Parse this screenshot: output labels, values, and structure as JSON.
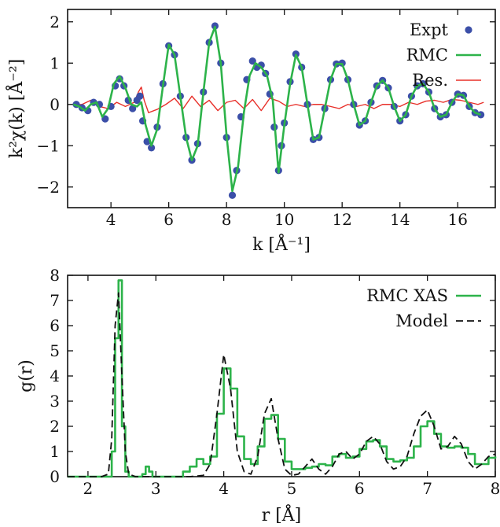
{
  "chart_data": [
    {
      "type": "line",
      "panel": "top",
      "xlabel": "k [Å⁻¹]",
      "ylabel": "k²χ(k) [Å⁻²]",
      "xlim": [
        2.5,
        17.3
      ],
      "ylim": [
        -2.5,
        2.3
      ],
      "xticks": [
        4,
        6,
        8,
        10,
        12,
        14,
        16
      ],
      "yticks": [
        -2,
        -1,
        0,
        1,
        2
      ],
      "grid": false,
      "legend_position": "top-right",
      "legend": [
        "Expt",
        "RMC",
        "Res."
      ],
      "colors": {
        "expt": "#3b4fa8",
        "rmc": "#2db34a",
        "res": "#e8302a"
      },
      "series": [
        {
          "name": "Expt",
          "style": "markers",
          "x": [
            2.8,
            3.0,
            3.2,
            3.4,
            3.6,
            3.8,
            4.0,
            4.15,
            4.3,
            4.45,
            4.6,
            4.75,
            4.9,
            5.0,
            5.1,
            5.25,
            5.4,
            5.6,
            5.8,
            6.0,
            6.2,
            6.4,
            6.6,
            6.8,
            7.0,
            7.2,
            7.4,
            7.6,
            7.8,
            8.0,
            8.2,
            8.35,
            8.5,
            8.7,
            8.9,
            9.05,
            9.2,
            9.35,
            9.5,
            9.65,
            9.8,
            9.9,
            10.0,
            10.2,
            10.4,
            10.6,
            10.8,
            11.0,
            11.2,
            11.4,
            11.6,
            11.8,
            12.0,
            12.2,
            12.4,
            12.6,
            12.8,
            13.0,
            13.2,
            13.4,
            13.6,
            13.8,
            14.0,
            14.2,
            14.4,
            14.6,
            14.8,
            15.0,
            15.2,
            15.4,
            15.6,
            15.8,
            16.0,
            16.2,
            16.4,
            16.6,
            16.8
          ],
          "y": [
            0.0,
            -0.08,
            -0.15,
            0.05,
            0.0,
            -0.35,
            -0.05,
            0.45,
            0.62,
            0.45,
            0.1,
            -0.1,
            0.1,
            0.2,
            -0.4,
            -0.9,
            -1.05,
            -0.55,
            0.5,
            1.42,
            1.2,
            0.2,
            -0.8,
            -1.35,
            -0.95,
            0.3,
            1.5,
            1.9,
            1.0,
            -0.8,
            -2.2,
            -1.6,
            -0.3,
            0.6,
            1.05,
            0.9,
            0.95,
            0.75,
            0.25,
            -0.55,
            -1.6,
            -1.0,
            -0.45,
            0.55,
            1.22,
            0.9,
            0.0,
            -0.85,
            -0.8,
            -0.1,
            0.6,
            0.98,
            1.0,
            0.6,
            0.0,
            -0.5,
            -0.4,
            0.05,
            0.45,
            0.58,
            0.4,
            -0.05,
            -0.4,
            -0.25,
            0.2,
            0.45,
            0.5,
            0.3,
            -0.1,
            -0.3,
            -0.25,
            0.05,
            0.25,
            0.22,
            -0.05,
            -0.2,
            -0.25
          ]
        },
        {
          "name": "RMC",
          "style": "line",
          "x": [
            2.7,
            2.9,
            3.1,
            3.3,
            3.5,
            3.7,
            3.9,
            4.1,
            4.3,
            4.5,
            4.7,
            4.9,
            5.05,
            5.2,
            5.4,
            5.6,
            5.8,
            6.0,
            6.2,
            6.4,
            6.6,
            6.8,
            7.0,
            7.2,
            7.4,
            7.6,
            7.8,
            8.0,
            8.2,
            8.4,
            8.6,
            8.8,
            9.0,
            9.2,
            9.4,
            9.6,
            9.8,
            10.0,
            10.2,
            10.4,
            10.6,
            10.8,
            11.0,
            11.2,
            11.4,
            11.6,
            11.8,
            12.0,
            12.2,
            12.4,
            12.6,
            12.8,
            13.0,
            13.2,
            13.4,
            13.6,
            13.8,
            14.0,
            14.2,
            14.4,
            14.6,
            14.8,
            15.0,
            15.2,
            15.4,
            15.6,
            15.8,
            16.0,
            16.2,
            16.4,
            16.6,
            16.8
          ],
          "y": [
            0.0,
            -0.05,
            -0.15,
            0.0,
            0.05,
            -0.3,
            -0.1,
            0.5,
            0.68,
            0.4,
            0.0,
            -0.05,
            0.05,
            -0.5,
            -1.0,
            -0.6,
            0.45,
            1.45,
            1.2,
            0.2,
            -0.8,
            -1.35,
            -1.0,
            0.3,
            1.5,
            1.88,
            1.0,
            -0.75,
            -2.1,
            -1.5,
            -0.2,
            0.7,
            1.0,
            0.9,
            0.7,
            0.1,
            -1.65,
            -0.5,
            0.5,
            1.2,
            0.9,
            0.0,
            -0.85,
            -0.8,
            -0.1,
            0.6,
            0.98,
            0.98,
            0.6,
            0.0,
            -0.5,
            -0.4,
            0.05,
            0.45,
            0.58,
            0.4,
            -0.05,
            -0.4,
            -0.25,
            0.2,
            0.45,
            0.5,
            0.3,
            -0.1,
            -0.3,
            -0.25,
            0.05,
            0.25,
            0.22,
            -0.05,
            -0.2,
            -0.25
          ]
        },
        {
          "name": "Res.",
          "style": "line",
          "x": [
            2.7,
            3.0,
            3.3,
            3.6,
            3.9,
            4.2,
            4.5,
            4.8,
            4.95,
            5.05,
            5.15,
            5.3,
            5.6,
            5.9,
            6.2,
            6.5,
            6.8,
            7.1,
            7.4,
            7.7,
            8.0,
            8.3,
            8.6,
            8.9,
            9.2,
            9.5,
            9.8,
            10.1,
            10.4,
            10.7,
            11.0,
            11.3,
            11.6,
            11.9,
            12.2,
            12.5,
            12.8,
            13.1,
            13.4,
            13.7,
            14.0,
            14.3,
            14.6,
            14.9,
            15.2,
            15.5,
            15.8,
            16.1,
            16.4,
            16.7,
            16.9
          ],
          "y": [
            -0.02,
            0.0,
            0.1,
            -0.05,
            -0.1,
            0.05,
            -0.05,
            0.05,
            0.3,
            0.42,
            0.1,
            -0.2,
            -0.12,
            0.0,
            0.15,
            -0.1,
            0.2,
            -0.05,
            0.1,
            -0.15,
            0.05,
            0.1,
            -0.1,
            0.12,
            -0.15,
            0.15,
            0.08,
            -0.05,
            0.0,
            -0.05,
            0.0,
            0.0,
            -0.05,
            -0.1,
            0.0,
            -0.05,
            0.0,
            -0.1,
            0.0,
            0.0,
            -0.05,
            0.05,
            0.0,
            0.08,
            0.1,
            0.05,
            0.12,
            0.1,
            0.05,
            0.0,
            0.05
          ]
        }
      ]
    },
    {
      "type": "line",
      "panel": "bottom",
      "xlabel": "r [Å]",
      "ylabel": "g(r)",
      "xlim": [
        1.7,
        8.0
      ],
      "ylim": [
        0,
        8
      ],
      "xticks": [
        2,
        3,
        4,
        5,
        6,
        7,
        8
      ],
      "yticks": [
        0,
        1,
        2,
        3,
        4,
        5,
        6,
        7,
        8
      ],
      "grid": false,
      "legend_position": "top-right",
      "legend": [
        "RMC XAS",
        "Model"
      ],
      "colors": {
        "rmc_xas": "#2db34a",
        "model": "#111111"
      },
      "series": [
        {
          "name": "RMC XAS",
          "style": "step",
          "x": [
            1.7,
            2.2,
            2.3,
            2.35,
            2.4,
            2.45,
            2.5,
            2.55,
            2.6,
            2.65,
            2.7,
            2.8,
            2.85,
            2.9,
            2.95,
            3.0,
            3.2,
            3.4,
            3.5,
            3.6,
            3.7,
            3.8,
            3.9,
            4.0,
            4.1,
            4.2,
            4.3,
            4.4,
            4.5,
            4.6,
            4.7,
            4.8,
            4.9,
            5.0,
            5.1,
            5.2,
            5.3,
            5.4,
            5.5,
            5.6,
            5.7,
            5.8,
            5.9,
            6.0,
            6.1,
            6.2,
            6.3,
            6.4,
            6.5,
            6.6,
            6.7,
            6.8,
            6.9,
            7.0,
            7.1,
            7.2,
            7.3,
            7.4,
            7.5,
            7.6,
            7.7,
            7.8,
            7.9,
            8.0
          ],
          "y": [
            0.0,
            0.0,
            0.0,
            1.0,
            5.5,
            7.8,
            2.0,
            0.2,
            0.0,
            0.0,
            0.0,
            0.1,
            0.4,
            0.2,
            0.0,
            0.0,
            0.0,
            0.2,
            0.4,
            0.7,
            0.5,
            0.8,
            2.5,
            4.3,
            3.5,
            1.6,
            0.7,
            0.5,
            1.2,
            2.3,
            2.45,
            1.5,
            0.6,
            0.3,
            0.3,
            0.35,
            0.4,
            0.5,
            0.45,
            0.8,
            0.9,
            0.75,
            0.8,
            1.1,
            1.4,
            1.45,
            1.2,
            0.7,
            0.6,
            0.65,
            0.75,
            1.2,
            2.0,
            2.2,
            1.7,
            1.2,
            1.15,
            1.2,
            1.15,
            0.9,
            0.5,
            0.5,
            0.75,
            0.8
          ]
        },
        {
          "name": "Model",
          "style": "dashed",
          "x": [
            1.7,
            2.2,
            2.3,
            2.35,
            2.4,
            2.45,
            2.5,
            2.55,
            2.6,
            2.7,
            2.8,
            3.0,
            3.5,
            3.7,
            3.8,
            3.9,
            4.0,
            4.1,
            4.2,
            4.3,
            4.4,
            4.5,
            4.6,
            4.7,
            4.8,
            4.9,
            5.0,
            5.1,
            5.2,
            5.3,
            5.4,
            5.5,
            5.6,
            5.7,
            5.8,
            5.9,
            6.0,
            6.1,
            6.2,
            6.3,
            6.4,
            6.5,
            6.6,
            6.7,
            6.8,
            6.9,
            7.0,
            7.1,
            7.2,
            7.3,
            7.4,
            7.5,
            7.6,
            7.7,
            7.8,
            7.9,
            8.0
          ],
          "y": [
            0.0,
            0.0,
            0.1,
            1.5,
            6.0,
            7.3,
            4.0,
            1.0,
            0.1,
            0.0,
            0.0,
            0.0,
            0.0,
            0.05,
            0.5,
            2.5,
            4.85,
            3.5,
            1.0,
            0.2,
            0.1,
            0.8,
            2.5,
            3.1,
            1.5,
            0.3,
            0.05,
            0.1,
            0.4,
            0.7,
            0.3,
            0.1,
            0.4,
            0.9,
            1.0,
            0.7,
            0.9,
            1.4,
            1.6,
            1.3,
            0.6,
            0.3,
            0.4,
            0.8,
            1.7,
            2.4,
            2.65,
            2.0,
            1.1,
            1.2,
            1.6,
            1.3,
            0.6,
            0.3,
            0.5,
            0.8,
            0.9
          ]
        }
      ]
    }
  ]
}
